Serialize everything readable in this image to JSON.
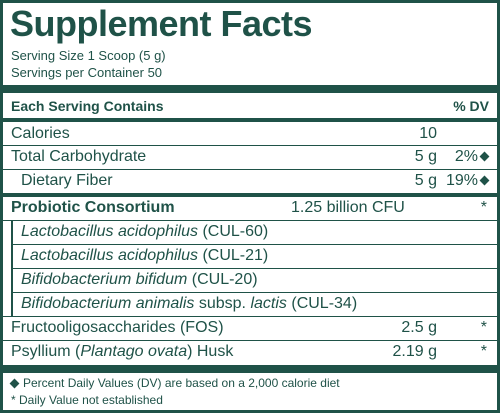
{
  "title": "Supplement Facts",
  "serving_size": "Serving Size 1 Scoop (5 g)",
  "servings_per_container": "Servings per Container 50",
  "header": {
    "left": "Each Serving Contains",
    "right": "% DV"
  },
  "rows": [
    {
      "name": "Calories",
      "amount": "10",
      "dv": ""
    },
    {
      "name": "Total Carbohydrate",
      "amount": "5 g",
      "dv": "2%"
    },
    {
      "name": "Dietary Fiber",
      "amount": "5 g",
      "dv": "19%"
    }
  ],
  "probiotic": {
    "name": "Probiotic Consortium",
    "amount": "1.25 billion CFU",
    "dv": "*",
    "strains": [
      {
        "species": "Lactobacillus acidophilus",
        "suffix": "(CUL-60)"
      },
      {
        "species": "Lactobacillus acidophilus",
        "suffix": "(CUL-21)"
      },
      {
        "species": "Bifidobacterium bifidum",
        "suffix": "(CUL-20)"
      },
      {
        "species": "Bifidobacterium animalis",
        "mid": "subsp.",
        "sub": "lactis",
        "suffix": "(CUL-34)"
      }
    ]
  },
  "fos": {
    "name": "Fructooligosaccharides (FOS)",
    "amount": "2.5 g",
    "dv": "*"
  },
  "psyllium": {
    "name_pre": "Psyllium (",
    "name_italic": "Plantago ovata",
    "name_post": ") Husk",
    "amount": "2.19 g",
    "dv": "*"
  },
  "footnotes": {
    "diamond": "Percent Daily Values (DV) are based on a 2,000 calorie diet",
    "star": "*  Daily Value not established"
  },
  "colors": {
    "ink": "#1f5248",
    "background": "#ffffff"
  }
}
